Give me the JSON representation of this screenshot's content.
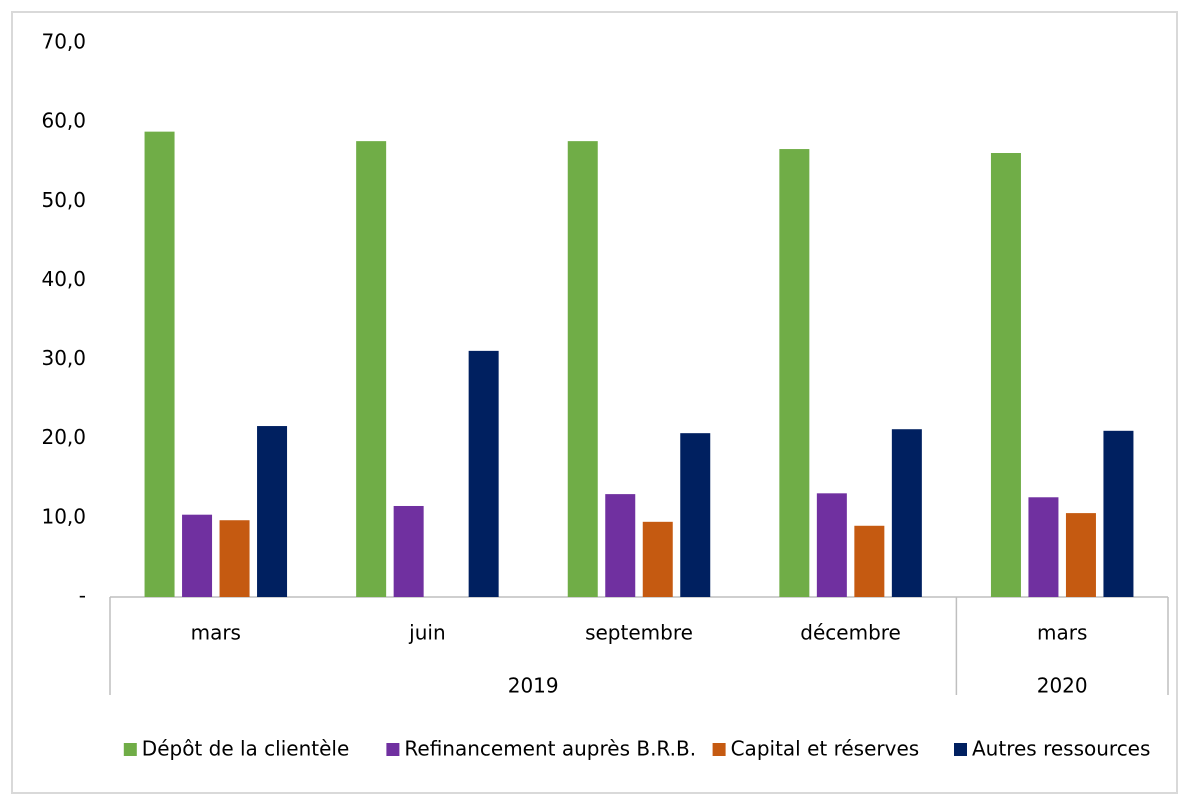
{
  "chart_data": {
    "type": "bar",
    "categories": [
      "mars",
      "juin",
      "septembre",
      "décembre",
      "mars"
    ],
    "category_groups": [
      "2019",
      "2019",
      "2019",
      "2019",
      "2020"
    ],
    "series": [
      {
        "name": "Dépôt de la clientèle",
        "color": "#70ad47",
        "values": [
          58.8,
          57.6,
          57.6,
          56.6,
          56.1
        ]
      },
      {
        "name": "Refinancement auprès B.R.B.",
        "color": "#7030a0",
        "values": [
          10.4,
          11.5,
          13.0,
          13.1,
          12.6
        ]
      },
      {
        "name": "Capital et réserves",
        "color": "#c55a11",
        "values": [
          9.7,
          null,
          9.5,
          9.0,
          10.6
        ]
      },
      {
        "name": "Autres ressources",
        "color": "#002060",
        "values": [
          21.6,
          31.1,
          20.7,
          21.2,
          21.0
        ]
      }
    ],
    "ylim": [
      0,
      70
    ],
    "yticks": [
      {
        "value": 0,
        "label": "-"
      },
      {
        "value": 10,
        "label": "10,0"
      },
      {
        "value": 20,
        "label": "20,0"
      },
      {
        "value": 30,
        "label": "30,0"
      },
      {
        "value": 40,
        "label": "40,0"
      },
      {
        "value": 50,
        "label": "50,0"
      },
      {
        "value": 60,
        "label": "60,0"
      },
      {
        "value": 70,
        "label": "70,0"
      }
    ],
    "grid": false,
    "legend": "bottom"
  }
}
